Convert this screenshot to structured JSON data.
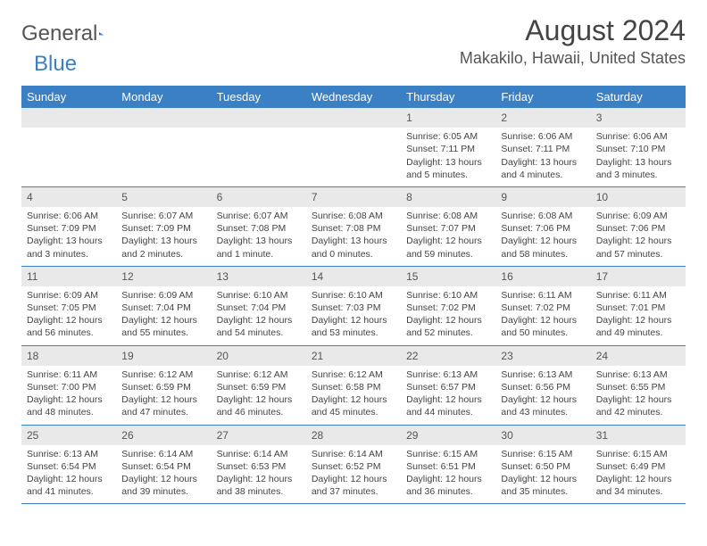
{
  "logo": {
    "part1": "General",
    "part2": "Blue",
    "primary_color": "#3b7fc4",
    "text_color": "#555555"
  },
  "title": {
    "month": "August 2024",
    "location": "Makakilo, Hawaii, United States"
  },
  "header_bg": "#3b7fc4",
  "date_bg": "#e9e9e9",
  "day_names": [
    "Sunday",
    "Monday",
    "Tuesday",
    "Wednesday",
    "Thursday",
    "Friday",
    "Saturday"
  ],
  "weeks": [
    [
      {
        "date": "",
        "sunrise": "",
        "sunset": "",
        "daylight": ""
      },
      {
        "date": "",
        "sunrise": "",
        "sunset": "",
        "daylight": ""
      },
      {
        "date": "",
        "sunrise": "",
        "sunset": "",
        "daylight": ""
      },
      {
        "date": "",
        "sunrise": "",
        "sunset": "",
        "daylight": ""
      },
      {
        "date": "1",
        "sunrise": "Sunrise: 6:05 AM",
        "sunset": "Sunset: 7:11 PM",
        "daylight": "Daylight: 13 hours and 5 minutes."
      },
      {
        "date": "2",
        "sunrise": "Sunrise: 6:06 AM",
        "sunset": "Sunset: 7:11 PM",
        "daylight": "Daylight: 13 hours and 4 minutes."
      },
      {
        "date": "3",
        "sunrise": "Sunrise: 6:06 AM",
        "sunset": "Sunset: 7:10 PM",
        "daylight": "Daylight: 13 hours and 3 minutes."
      }
    ],
    [
      {
        "date": "4",
        "sunrise": "Sunrise: 6:06 AM",
        "sunset": "Sunset: 7:09 PM",
        "daylight": "Daylight: 13 hours and 3 minutes."
      },
      {
        "date": "5",
        "sunrise": "Sunrise: 6:07 AM",
        "sunset": "Sunset: 7:09 PM",
        "daylight": "Daylight: 13 hours and 2 minutes."
      },
      {
        "date": "6",
        "sunrise": "Sunrise: 6:07 AM",
        "sunset": "Sunset: 7:08 PM",
        "daylight": "Daylight: 13 hours and 1 minute."
      },
      {
        "date": "7",
        "sunrise": "Sunrise: 6:08 AM",
        "sunset": "Sunset: 7:08 PM",
        "daylight": "Daylight: 13 hours and 0 minutes."
      },
      {
        "date": "8",
        "sunrise": "Sunrise: 6:08 AM",
        "sunset": "Sunset: 7:07 PM",
        "daylight": "Daylight: 12 hours and 59 minutes."
      },
      {
        "date": "9",
        "sunrise": "Sunrise: 6:08 AM",
        "sunset": "Sunset: 7:06 PM",
        "daylight": "Daylight: 12 hours and 58 minutes."
      },
      {
        "date": "10",
        "sunrise": "Sunrise: 6:09 AM",
        "sunset": "Sunset: 7:06 PM",
        "daylight": "Daylight: 12 hours and 57 minutes."
      }
    ],
    [
      {
        "date": "11",
        "sunrise": "Sunrise: 6:09 AM",
        "sunset": "Sunset: 7:05 PM",
        "daylight": "Daylight: 12 hours and 56 minutes."
      },
      {
        "date": "12",
        "sunrise": "Sunrise: 6:09 AM",
        "sunset": "Sunset: 7:04 PM",
        "daylight": "Daylight: 12 hours and 55 minutes."
      },
      {
        "date": "13",
        "sunrise": "Sunrise: 6:10 AM",
        "sunset": "Sunset: 7:04 PM",
        "daylight": "Daylight: 12 hours and 54 minutes."
      },
      {
        "date": "14",
        "sunrise": "Sunrise: 6:10 AM",
        "sunset": "Sunset: 7:03 PM",
        "daylight": "Daylight: 12 hours and 53 minutes."
      },
      {
        "date": "15",
        "sunrise": "Sunrise: 6:10 AM",
        "sunset": "Sunset: 7:02 PM",
        "daylight": "Daylight: 12 hours and 52 minutes."
      },
      {
        "date": "16",
        "sunrise": "Sunrise: 6:11 AM",
        "sunset": "Sunset: 7:02 PM",
        "daylight": "Daylight: 12 hours and 50 minutes."
      },
      {
        "date": "17",
        "sunrise": "Sunrise: 6:11 AM",
        "sunset": "Sunset: 7:01 PM",
        "daylight": "Daylight: 12 hours and 49 minutes."
      }
    ],
    [
      {
        "date": "18",
        "sunrise": "Sunrise: 6:11 AM",
        "sunset": "Sunset: 7:00 PM",
        "daylight": "Daylight: 12 hours and 48 minutes."
      },
      {
        "date": "19",
        "sunrise": "Sunrise: 6:12 AM",
        "sunset": "Sunset: 6:59 PM",
        "daylight": "Daylight: 12 hours and 47 minutes."
      },
      {
        "date": "20",
        "sunrise": "Sunrise: 6:12 AM",
        "sunset": "Sunset: 6:59 PM",
        "daylight": "Daylight: 12 hours and 46 minutes."
      },
      {
        "date": "21",
        "sunrise": "Sunrise: 6:12 AM",
        "sunset": "Sunset: 6:58 PM",
        "daylight": "Daylight: 12 hours and 45 minutes."
      },
      {
        "date": "22",
        "sunrise": "Sunrise: 6:13 AM",
        "sunset": "Sunset: 6:57 PM",
        "daylight": "Daylight: 12 hours and 44 minutes."
      },
      {
        "date": "23",
        "sunrise": "Sunrise: 6:13 AM",
        "sunset": "Sunset: 6:56 PM",
        "daylight": "Daylight: 12 hours and 43 minutes."
      },
      {
        "date": "24",
        "sunrise": "Sunrise: 6:13 AM",
        "sunset": "Sunset: 6:55 PM",
        "daylight": "Daylight: 12 hours and 42 minutes."
      }
    ],
    [
      {
        "date": "25",
        "sunrise": "Sunrise: 6:13 AM",
        "sunset": "Sunset: 6:54 PM",
        "daylight": "Daylight: 12 hours and 41 minutes."
      },
      {
        "date": "26",
        "sunrise": "Sunrise: 6:14 AM",
        "sunset": "Sunset: 6:54 PM",
        "daylight": "Daylight: 12 hours and 39 minutes."
      },
      {
        "date": "27",
        "sunrise": "Sunrise: 6:14 AM",
        "sunset": "Sunset: 6:53 PM",
        "daylight": "Daylight: 12 hours and 38 minutes."
      },
      {
        "date": "28",
        "sunrise": "Sunrise: 6:14 AM",
        "sunset": "Sunset: 6:52 PM",
        "daylight": "Daylight: 12 hours and 37 minutes."
      },
      {
        "date": "29",
        "sunrise": "Sunrise: 6:15 AM",
        "sunset": "Sunset: 6:51 PM",
        "daylight": "Daylight: 12 hours and 36 minutes."
      },
      {
        "date": "30",
        "sunrise": "Sunrise: 6:15 AM",
        "sunset": "Sunset: 6:50 PM",
        "daylight": "Daylight: 12 hours and 35 minutes."
      },
      {
        "date": "31",
        "sunrise": "Sunrise: 6:15 AM",
        "sunset": "Sunset: 6:49 PM",
        "daylight": "Daylight: 12 hours and 34 minutes."
      }
    ]
  ]
}
